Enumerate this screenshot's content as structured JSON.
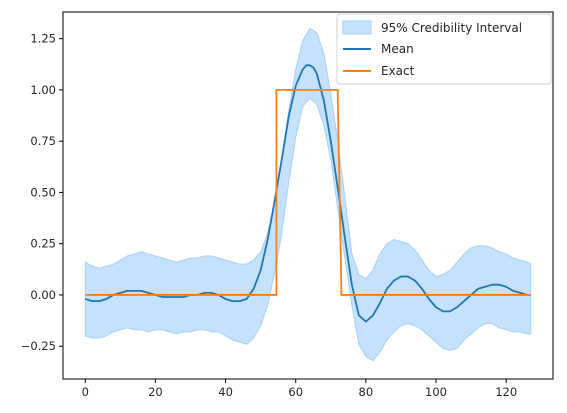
{
  "chart_data": {
    "type": "line",
    "title": "",
    "xlabel": "",
    "ylabel": "",
    "xlim": [
      -6.35,
      133.35
    ],
    "ylim": [
      -0.41,
      1.38
    ],
    "xticks": [
      0,
      20,
      40,
      60,
      80,
      100,
      120
    ],
    "yticks": [
      -0.25,
      0.0,
      0.25,
      0.5,
      0.75,
      1.0,
      1.25
    ],
    "xtick_labels": [
      "0",
      "20",
      "40",
      "60",
      "80",
      "100",
      "120"
    ],
    "ytick_labels": [
      "−0.25",
      "0.00",
      "0.25",
      "0.50",
      "0.75",
      "1.00",
      "1.25"
    ],
    "grid": false,
    "legend_position": "top-right",
    "colors": {
      "band": "#a6d1fa",
      "mean": "#1f77b4",
      "exact": "#ff7f0e"
    },
    "band": {
      "name": "95% Credibility Interval",
      "x": [
        0,
        2,
        4,
        6,
        8,
        10,
        12,
        14,
        16,
        18,
        20,
        22,
        24,
        26,
        28,
        30,
        32,
        34,
        36,
        38,
        40,
        42,
        44,
        46,
        48,
        50,
        52,
        54,
        56,
        58,
        60,
        62,
        64,
        66,
        68,
        70,
        72,
        74,
        76,
        78,
        80,
        82,
        84,
        86,
        88,
        90,
        92,
        94,
        96,
        98,
        100,
        102,
        104,
        106,
        108,
        110,
        112,
        114,
        116,
        118,
        120,
        122,
        124,
        126,
        127
      ],
      "upper": [
        0.16,
        0.14,
        0.13,
        0.14,
        0.15,
        0.17,
        0.19,
        0.2,
        0.21,
        0.2,
        0.19,
        0.18,
        0.17,
        0.16,
        0.17,
        0.18,
        0.18,
        0.19,
        0.19,
        0.18,
        0.17,
        0.16,
        0.15,
        0.15,
        0.17,
        0.21,
        0.3,
        0.45,
        0.66,
        0.9,
        1.1,
        1.24,
        1.3,
        1.28,
        1.18,
        0.98,
        0.75,
        0.48,
        0.2,
        0.1,
        0.08,
        0.12,
        0.2,
        0.25,
        0.27,
        0.26,
        0.25,
        0.22,
        0.17,
        0.12,
        0.09,
        0.1,
        0.12,
        0.16,
        0.2,
        0.23,
        0.24,
        0.24,
        0.23,
        0.21,
        0.2,
        0.18,
        0.17,
        0.16,
        0.15
      ],
      "lower": [
        -0.2,
        -0.21,
        -0.21,
        -0.2,
        -0.18,
        -0.17,
        -0.16,
        -0.17,
        -0.17,
        -0.18,
        -0.17,
        -0.17,
        -0.18,
        -0.19,
        -0.18,
        -0.18,
        -0.17,
        -0.17,
        -0.18,
        -0.18,
        -0.2,
        -0.22,
        -0.23,
        -0.24,
        -0.21,
        -0.15,
        -0.05,
        0.11,
        0.3,
        0.55,
        0.77,
        0.92,
        0.96,
        0.93,
        0.83,
        0.66,
        0.42,
        0.18,
        -0.05,
        -0.24,
        -0.3,
        -0.32,
        -0.28,
        -0.22,
        -0.18,
        -0.15,
        -0.14,
        -0.15,
        -0.17,
        -0.2,
        -0.23,
        -0.26,
        -0.27,
        -0.26,
        -0.22,
        -0.19,
        -0.16,
        -0.14,
        -0.14,
        -0.16,
        -0.17,
        -0.18,
        -0.18,
        -0.19,
        -0.19
      ]
    },
    "series": [
      {
        "name": "Mean",
        "x": [
          0,
          2,
          4,
          6,
          8,
          10,
          12,
          14,
          16,
          18,
          20,
          22,
          24,
          26,
          28,
          30,
          32,
          34,
          36,
          38,
          40,
          42,
          44,
          46,
          48,
          50,
          52,
          54,
          56,
          58,
          60,
          62,
          63,
          64,
          65,
          66,
          68,
          70,
          72,
          74,
          76,
          78,
          80,
          82,
          84,
          86,
          88,
          90,
          92,
          94,
          96,
          98,
          100,
          102,
          104,
          106,
          108,
          110,
          112,
          114,
          116,
          118,
          120,
          122,
          124,
          126,
          127
        ],
        "y": [
          -0.02,
          -0.03,
          -0.03,
          -0.02,
          0.0,
          0.01,
          0.02,
          0.02,
          0.02,
          0.01,
          0.0,
          -0.01,
          -0.01,
          -0.01,
          -0.01,
          0.0,
          0.0,
          0.01,
          0.01,
          0.0,
          -0.02,
          -0.03,
          -0.03,
          -0.02,
          0.03,
          0.12,
          0.27,
          0.46,
          0.66,
          0.87,
          1.02,
          1.1,
          1.12,
          1.12,
          1.11,
          1.08,
          0.95,
          0.75,
          0.52,
          0.28,
          0.05,
          -0.1,
          -0.13,
          -0.1,
          -0.04,
          0.03,
          0.07,
          0.09,
          0.09,
          0.07,
          0.03,
          -0.02,
          -0.06,
          -0.08,
          -0.08,
          -0.06,
          -0.03,
          0.0,
          0.03,
          0.04,
          0.05,
          0.05,
          0.04,
          0.02,
          0.01,
          0.0,
          0.0
        ]
      },
      {
        "name": "Exact",
        "x": [
          0,
          54.5,
          54.5,
          72,
          72,
          73,
          73,
          127
        ],
        "y": [
          0,
          0,
          1,
          1,
          0.95,
          0.05,
          0,
          0
        ]
      }
    ],
    "legend": {
      "entries": [
        "95% Credibility Interval",
        "Mean",
        "Exact"
      ]
    }
  }
}
